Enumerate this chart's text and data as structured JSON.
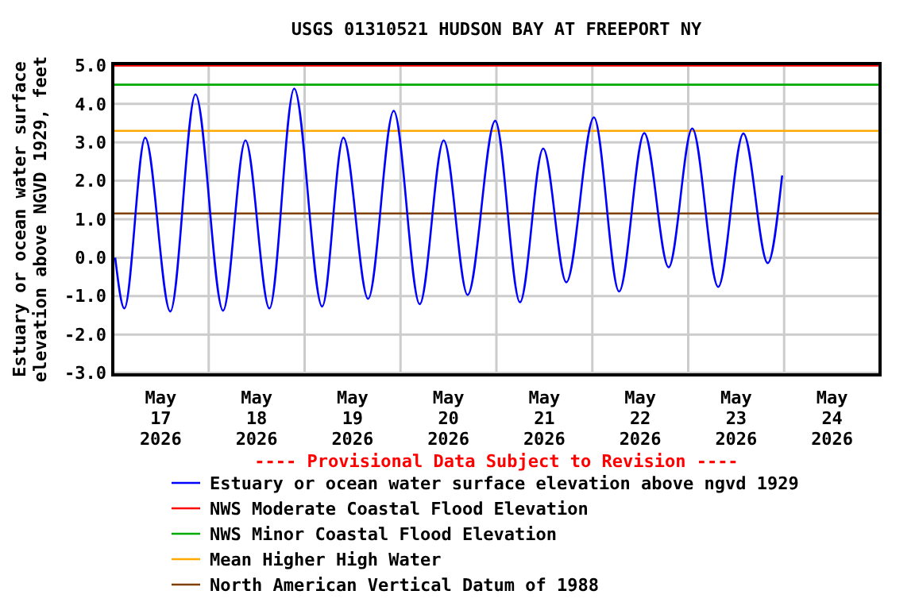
{
  "chart_data": {
    "type": "line",
    "title": "USGS 01310521 HUDSON BAY AT FREEPORT NY",
    "ylabel": "Estuary or ocean water surface elevation above NGVD 1929, feet",
    "annotations": [
      "---- Provisional Data Subject to Revision ----"
    ],
    "xlim": [
      "2026-05-17T00:00",
      "2026-05-25T00:00"
    ],
    "xticks": [
      {
        "value": "2026-05-17T12:00",
        "label": "May\n17\n2026"
      },
      {
        "value": "2026-05-18T12:00",
        "label": "May\n18\n2026"
      },
      {
        "value": "2026-05-19T12:00",
        "label": "May\n19\n2026"
      },
      {
        "value": "2026-05-20T12:00",
        "label": "May\n20\n2026"
      },
      {
        "value": "2026-05-21T12:00",
        "label": "May\n21\n2026"
      },
      {
        "value": "2026-05-22T12:00",
        "label": "May\n22\n2026"
      },
      {
        "value": "2026-05-23T12:00",
        "label": "May\n23\n2026"
      },
      {
        "value": "2026-05-24T12:00",
        "label": "May\n24\n2026"
      },
      {
        "value": "2026-05-18T00:00",
        "label": null
      },
      {
        "value": "2026-05-19T00:00",
        "label": null
      },
      {
        "value": "2026-05-20T00:00",
        "label": null
      },
      {
        "value": "2026-05-21T00:00",
        "label": null
      },
      {
        "value": "2026-05-22T00:00",
        "label": null
      },
      {
        "value": "2026-05-23T00:00",
        "label": null
      },
      {
        "value": "2026-05-24T00:00",
        "label": null
      }
    ],
    "ylim": [
      -3.05,
      5.05
    ],
    "yticks": [
      {
        "value": -3,
        "label": "-3.0"
      },
      {
        "value": -2,
        "label": "-2.0"
      },
      {
        "value": -1,
        "label": "-1.0"
      },
      {
        "value": 0,
        "label": "0.0"
      },
      {
        "value": 1,
        "label": "1.0"
      },
      {
        "value": 2,
        "label": "2.0"
      },
      {
        "value": 3,
        "label": "3.0"
      },
      {
        "value": 4,
        "label": "4.0"
      },
      {
        "value": 5,
        "label": "5.0"
      }
    ],
    "grid": true,
    "legend": "bottom",
    "marker": "none",
    "line_style": "solid",
    "series": [
      {
        "name": "Estuary or ocean water surface elevation above ngvd 1929",
        "color": "#0000ff",
        "x": [
          "2026-05-17T00:36",
          "2026-05-17T02:54",
          "2026-05-17T08:06",
          "2026-05-17T14:24",
          "2026-05-17T20:42",
          "2026-05-18T03:36",
          "2026-05-18T09:12",
          "2026-05-18T15:12",
          "2026-05-18T21:24",
          "2026-05-19T04:24",
          "2026-05-19T09:42",
          "2026-05-19T15:54",
          "2026-05-19T22:18",
          "2026-05-20T04:48",
          "2026-05-20T10:48",
          "2026-05-20T16:48",
          "2026-05-20T23:42",
          "2026-05-21T05:54",
          "2026-05-21T11:42",
          "2026-05-21T17:30",
          "2026-05-22T00:24",
          "2026-05-22T06:42",
          "2026-05-22T13:00",
          "2026-05-22T19:06",
          "2026-05-23T01:00",
          "2026-05-23T07:30",
          "2026-05-23T13:48",
          "2026-05-23T19:54",
          "2026-05-23T23:30"
        ],
        "values": [
          0.0,
          -1.32,
          3.12,
          -1.4,
          4.25,
          -1.38,
          3.05,
          -1.32,
          4.4,
          -1.27,
          3.12,
          -1.07,
          3.82,
          -1.21,
          3.05,
          -0.97,
          3.56,
          -1.16,
          2.84,
          -0.64,
          3.65,
          -0.88,
          3.24,
          -0.25,
          3.36,
          -0.76,
          3.23,
          -0.14,
          2.14
        ]
      }
    ],
    "ref_lines": [
      {
        "axis": "y",
        "value": 5.0,
        "label": "NWS Moderate Coastal Flood Elevation",
        "color": "#ff0000"
      },
      {
        "axis": "y",
        "value": 4.5,
        "label": "NWS Minor Coastal Flood Elevation",
        "color": "#00aa00"
      },
      {
        "axis": "y",
        "value": 3.3,
        "label": "Mean Higher High Water",
        "color": "#ffaa00"
      },
      {
        "axis": "y",
        "value": 1.15,
        "label": "North American Vertical Datum of 1988",
        "color": "#804000"
      }
    ]
  }
}
